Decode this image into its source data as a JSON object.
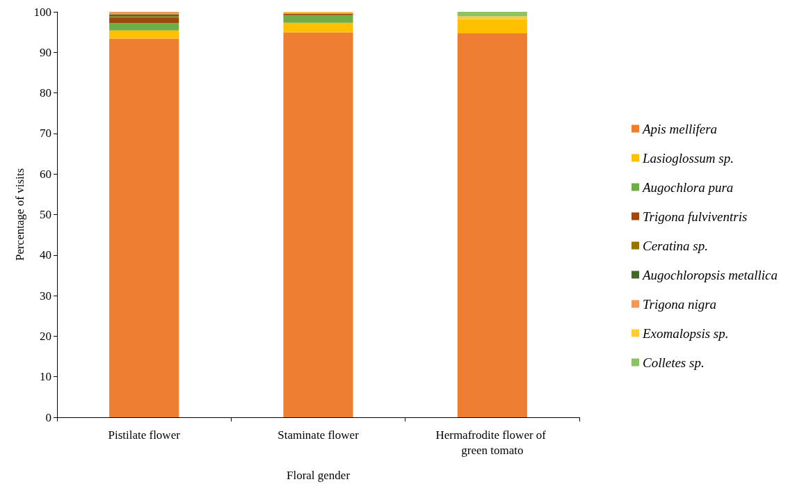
{
  "chart_data": {
    "type": "bar",
    "stacked": true,
    "xlabel": "Floral gender",
    "ylabel": "Percentage of visits",
    "categories": [
      "Pistilate flower",
      "Staminate flower",
      "Hermafrodite flower of green tomato"
    ],
    "series": [
      {
        "name": "Apis mellifera",
        "color": "#ed7d31",
        "values": [
          93.4,
          94.9,
          94.7
        ]
      },
      {
        "name": "Lasioglossum sp.",
        "color": "#ffc000",
        "values": [
          2.0,
          2.4,
          3.5
        ]
      },
      {
        "name": "Augochlora pura",
        "color": "#70ad47",
        "values": [
          1.8,
          1.9,
          0
        ]
      },
      {
        "name": "Trigona fulviventris",
        "color": "#9e480e",
        "values": [
          1.4,
          0.3,
          0
        ]
      },
      {
        "name": "Ceratina sp.",
        "color": "#997300",
        "values": [
          0.3,
          0,
          0
        ]
      },
      {
        "name": "Augochloropsis metallica",
        "color": "#43682b",
        "values": [
          0.4,
          0,
          0
        ]
      },
      {
        "name": "Trigona nigra",
        "color": "#f1975a",
        "values": [
          0.7,
          0.3,
          0
        ]
      },
      {
        "name": "Exomalopsis sp.",
        "color": "#ffcd33",
        "values": [
          0,
          0.2,
          0.7
        ]
      },
      {
        "name": "Colletes sp.",
        "color": "#8cc168",
        "values": [
          0,
          0,
          1.1
        ]
      }
    ],
    "ylim": [
      0,
      100
    ],
    "yticks": [
      0,
      10,
      20,
      30,
      40,
      50,
      60,
      70,
      80,
      90,
      100
    ],
    "grid": false,
    "legend": "right"
  }
}
